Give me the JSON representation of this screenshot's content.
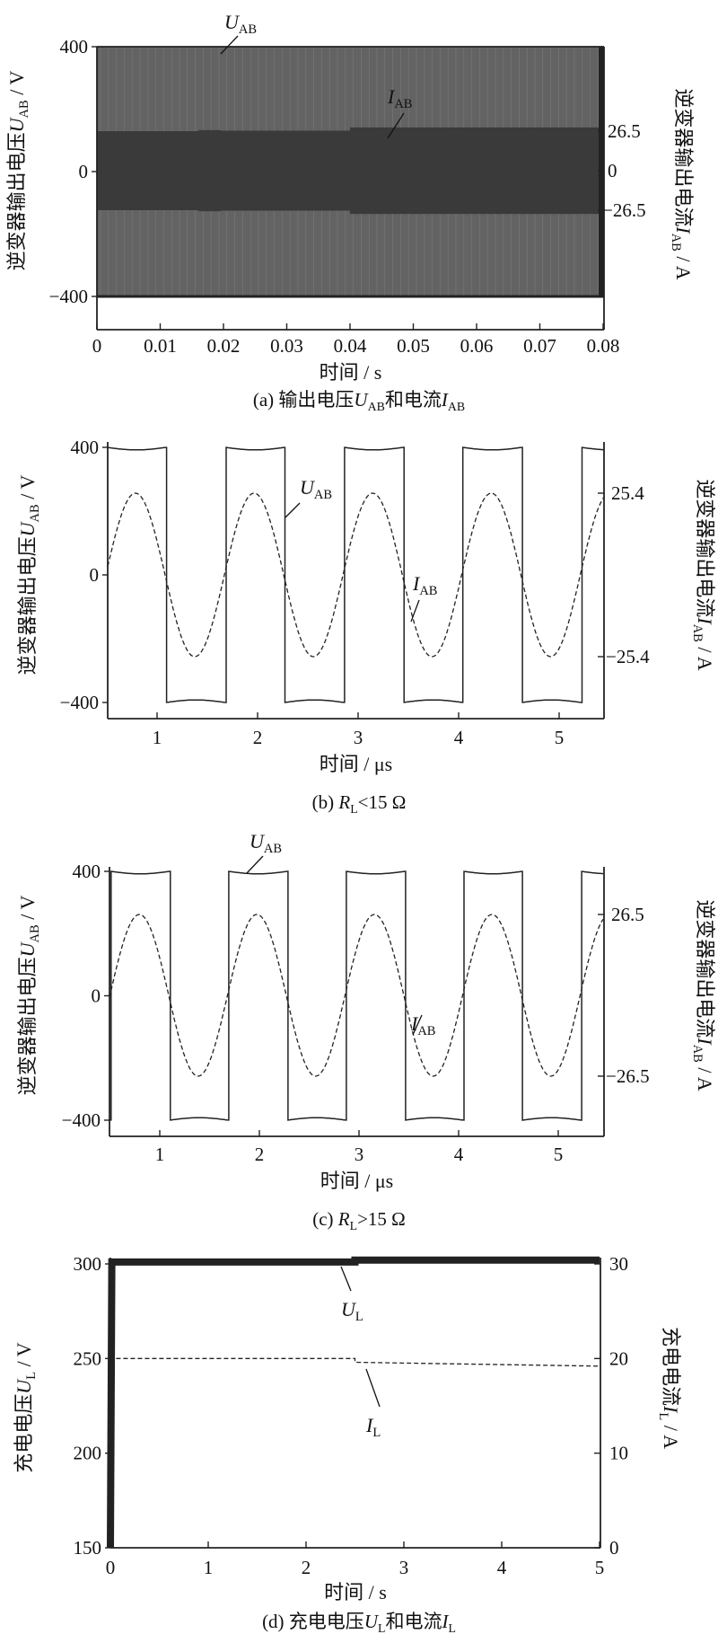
{
  "chart_data": [
    {
      "id": "a",
      "type": "area",
      "caption": [
        {
          "t": "(a)  输出电压"
        },
        {
          "t": "U",
          "i": true
        },
        {
          "t": "AB",
          "sub": true
        },
        {
          "t": "和电流"
        },
        {
          "t": "I",
          "i": true
        },
        {
          "t": "AB",
          "sub": true
        }
      ],
      "xlabel": [
        {
          "t": "时间 / s"
        }
      ],
      "ylabel_left": [
        {
          "t": "逆变器输出电压"
        },
        {
          "t": "U",
          "i": true
        },
        {
          "t": "AB",
          "sub": true
        },
        {
          "t": " / V"
        }
      ],
      "ylabel_right": [
        {
          "t": "逆变器输出电流"
        },
        {
          "t": "I",
          "i": true
        },
        {
          "t": "AB",
          "sub": true
        },
        {
          "t": " / A"
        }
      ],
      "xlim": [
        0,
        0.08
      ],
      "xticks": [
        {
          "v": 0,
          "l": "0"
        },
        {
          "v": 0.01,
          "l": "0.01"
        },
        {
          "v": 0.02,
          "l": "0.02"
        },
        {
          "v": 0.03,
          "l": "0.03"
        },
        {
          "v": 0.04,
          "l": "0.04"
        },
        {
          "v": 0.05,
          "l": "0.05"
        },
        {
          "v": 0.06,
          "l": "0.06"
        },
        {
          "v": 0.07,
          "l": "0.07"
        },
        {
          "v": 0.08,
          "l": "0.08"
        }
      ],
      "yticks_left": [
        {
          "v": 400,
          "l": "400"
        },
        {
          "v": 0,
          "l": "0"
        },
        {
          "v": -400,
          "l": "−400"
        }
      ],
      "yticks_right": [
        {
          "v": 26.5,
          "l": "26.5"
        },
        {
          "v": 0,
          "l": "0"
        },
        {
          "v": -26.5,
          "l": "−26.5"
        }
      ],
      "series": [
        {
          "name": "U_AB",
          "axis": "left",
          "kind": "envelope",
          "amplitude": 400
        },
        {
          "name": "I_AB",
          "axis": "right",
          "kind": "envelope",
          "segments": [
            {
              "t0": 0,
              "t1": 0.016,
              "amplitude": 26.5
            },
            {
              "t0": 0.016,
              "t1": 0.0195,
              "amplitude": 27.2
            },
            {
              "t0": 0.0195,
              "t1": 0.04,
              "amplitude": 26.8
            },
            {
              "t0": 0.04,
              "t1": 0.08,
              "amplitude": 29
            }
          ]
        }
      ],
      "annotations": [
        [
          {
            "t": "U",
            "i": true
          },
          {
            "t": "AB",
            "sub": true
          }
        ],
        [
          {
            "t": "I",
            "i": true
          },
          {
            "t": "AB",
            "sub": true
          }
        ]
      ],
      "colors": {
        "voltage_fill": "#636363",
        "current_fill": "#3a3a3a",
        "stripe": "#7a7a7a"
      }
    },
    {
      "id": "b",
      "type": "line",
      "caption": [
        {
          "t": "(b)  "
        },
        {
          "t": "R",
          "i": true
        },
        {
          "t": "L",
          "sub": true
        },
        {
          "t": "<15  Ω"
        }
      ],
      "xlabel": [
        {
          "t": "时间 / μs"
        }
      ],
      "ylabel_left": [
        {
          "t": "逆变器输出电压"
        },
        {
          "t": "U",
          "i": true
        },
        {
          "t": "AB",
          "sub": true
        },
        {
          "t": " / V"
        }
      ],
      "ylabel_right": [
        {
          "t": "逆变器输出电流"
        },
        {
          "t": "I",
          "i": true
        },
        {
          "t": "AB",
          "sub": true
        },
        {
          "t": " / A"
        }
      ],
      "xlim": [
        0.51,
        5.45
      ],
      "xticks": [
        {
          "v": 1,
          "l": "1"
        },
        {
          "v": 2,
          "l": "2"
        },
        {
          "v": 3,
          "l": "3"
        },
        {
          "v": 4,
          "l": "4"
        },
        {
          "v": 5,
          "l": "5"
        }
      ],
      "yticks_left": [
        {
          "v": 400,
          "l": "400"
        },
        {
          "v": 0,
          "l": "0"
        },
        {
          "v": -400,
          "l": "−400"
        }
      ],
      "yticks_right": [
        {
          "v": 25.4,
          "l": "25.4"
        },
        {
          "v": -25.4,
          "l": "−25.4"
        }
      ],
      "series": [
        {
          "name": "U_AB",
          "axis": "left",
          "kind": "square",
          "amplitude": 400,
          "droop": 8,
          "period": 1.18,
          "first_falling_edge": 1.09,
          "style": "solid"
        },
        {
          "name": "I_AB",
          "axis": "right",
          "kind": "sine",
          "amplitude": 25.4,
          "period": 1.18,
          "zero_rising": 0.49,
          "style": "dashed"
        }
      ],
      "annotations": [
        [
          {
            "t": "U",
            "i": true
          },
          {
            "t": "AB",
            "sub": true
          }
        ],
        [
          {
            "t": "I",
            "i": true
          },
          {
            "t": "AB",
            "sub": true
          }
        ]
      ]
    },
    {
      "id": "c",
      "type": "line",
      "caption": [
        {
          "t": "(c)  "
        },
        {
          "t": "R",
          "i": true
        },
        {
          "t": "L",
          "sub": true
        },
        {
          "t": ">15  Ω"
        }
      ],
      "xlabel": [
        {
          "t": "时间 / μs"
        }
      ],
      "ylabel_left": [
        {
          "t": "逆变器输出电压"
        },
        {
          "t": "U",
          "i": true
        },
        {
          "t": "AB",
          "sub": true
        },
        {
          "t": " / V"
        }
      ],
      "ylabel_right": [
        {
          "t": "逆变器输出电流"
        },
        {
          "t": "I",
          "i": true
        },
        {
          "t": "AB",
          "sub": true
        },
        {
          "t": " / A"
        }
      ],
      "xlim": [
        0.495,
        5.45
      ],
      "xticks": [
        {
          "v": 1,
          "l": "1"
        },
        {
          "v": 2,
          "l": "2"
        },
        {
          "v": 3,
          "l": "3"
        },
        {
          "v": 4,
          "l": "4"
        },
        {
          "v": 5,
          "l": "5"
        }
      ],
      "yticks_left": [
        {
          "v": 400,
          "l": "400"
        },
        {
          "v": 0,
          "l": "0"
        },
        {
          "v": -400,
          "l": "−400"
        }
      ],
      "yticks_right": [
        {
          "v": 26.5,
          "l": "26.5"
        },
        {
          "v": -26.5,
          "l": "−26.5"
        }
      ],
      "series": [
        {
          "name": "U_AB",
          "axis": "left",
          "kind": "square",
          "amplitude": 400,
          "droop": 8,
          "period": 1.18,
          "first_falling_edge": 1.1,
          "style": "solid"
        },
        {
          "name": "I_AB",
          "axis": "right",
          "kind": "sine",
          "amplitude": 26.5,
          "period": 1.18,
          "zero_rising": 0.5,
          "style": "dashed"
        }
      ],
      "annotations": [
        [
          {
            "t": "U",
            "i": true
          },
          {
            "t": "AB",
            "sub": true
          }
        ],
        [
          {
            "t": "I",
            "i": true
          },
          {
            "t": "AB",
            "sub": true
          }
        ]
      ]
    },
    {
      "id": "d",
      "type": "line",
      "caption": [
        {
          "t": "(d)  充电电压"
        },
        {
          "t": "U",
          "i": true
        },
        {
          "t": "L",
          "sub": true
        },
        {
          "t": "和电流"
        },
        {
          "t": "I",
          "i": true
        },
        {
          "t": "L",
          "sub": true
        }
      ],
      "xlabel": [
        {
          "t": "时间 / s"
        }
      ],
      "ylabel_left": [
        {
          "t": "充电电压"
        },
        {
          "t": "U",
          "i": true
        },
        {
          "t": "L",
          "sub": true
        },
        {
          "t": "  / V"
        }
      ],
      "ylabel_right": [
        {
          "t": "充电电流"
        },
        {
          "t": "I",
          "i": true
        },
        {
          "t": "L",
          "sub": true
        },
        {
          "t": "  / A"
        }
      ],
      "xlim": [
        0,
        5
      ],
      "ylim_left": [
        150,
        300
      ],
      "ylim_right": [
        0,
        30
      ],
      "xticks": [
        {
          "v": 0,
          "l": "0"
        },
        {
          "v": 1,
          "l": "1"
        },
        {
          "v": 2,
          "l": "2"
        },
        {
          "v": 3,
          "l": "3"
        },
        {
          "v": 4,
          "l": "4"
        },
        {
          "v": 5,
          "l": "5"
        }
      ],
      "yticks_left": [
        {
          "v": 300,
          "l": "300"
        },
        {
          "v": 250,
          "l": "250"
        },
        {
          "v": 200,
          "l": "200"
        },
        {
          "v": 150,
          "l": "150"
        }
      ],
      "yticks_right": [
        {
          "v": 30,
          "l": "30"
        },
        {
          "v": 20,
          "l": "20"
        },
        {
          "v": 10,
          "l": "10"
        },
        {
          "v": 0,
          "l": "0"
        }
      ],
      "series": [
        {
          "name": "U_L",
          "axis": "left",
          "kind": "points",
          "style": "thick",
          "points": [
            [
              0,
              150
            ],
            [
              0.015,
              301
            ],
            [
              2.5,
              301
            ],
            [
              2.5,
              302
            ],
            [
              5,
              302
            ]
          ]
        },
        {
          "name": "I_L",
          "axis": "right",
          "kind": "points",
          "style": "dashed",
          "points": [
            [
              0,
              0
            ],
            [
              0.01,
              20
            ],
            [
              2.5,
              20
            ],
            [
              2.5,
              19.6
            ],
            [
              5,
              19.2
            ]
          ]
        }
      ],
      "annotations": [
        [
          {
            "t": "U",
            "i": true
          },
          {
            "t": "L",
            "sub": true
          }
        ],
        [
          {
            "t": "I",
            "i": true
          },
          {
            "t": "L",
            "sub": true
          }
        ]
      ]
    }
  ]
}
